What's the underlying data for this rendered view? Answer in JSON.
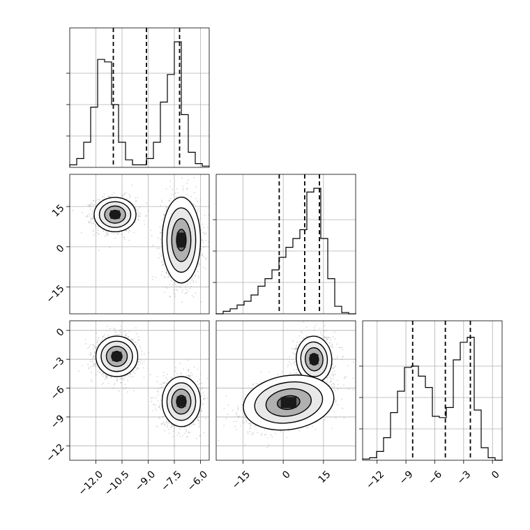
{
  "chart_data": {
    "type": "corner",
    "parameters": [
      {
        "range": [
          -13.5,
          -5.5
        ],
        "ticks": [
          -12.0,
          -10.5,
          -9.0,
          -7.5,
          -6.0
        ],
        "tick_labels": [
          "−12.0",
          "−10.5",
          "−9.0",
          "−7.5",
          "−6.0"
        ],
        "quantiles": [
          -11.0,
          -9.1,
          -7.2
        ],
        "hist_edges": [
          -13.5,
          -13.1,
          -12.7,
          -12.3,
          -11.9,
          -11.5,
          -11.1,
          -10.7,
          -10.3,
          -9.9,
          -9.5,
          -9.1,
          -8.7,
          -8.3,
          -7.9,
          -7.5,
          -7.1,
          -6.7,
          -6.3,
          -5.9,
          -5.5
        ],
        "hist_counts": [
          0.02,
          0.07,
          0.2,
          0.48,
          0.86,
          0.84,
          0.5,
          0.2,
          0.06,
          0.02,
          0.02,
          0.07,
          0.2,
          0.52,
          0.74,
          1.0,
          0.42,
          0.12,
          0.03,
          0.01
        ]
      },
      {
        "range": [
          -25,
          27
        ],
        "ticks": [
          -15,
          0,
          15
        ],
        "tick_labels": [
          "−15",
          "0",
          "15"
        ],
        "quantiles": [
          -1.5,
          8.0,
          13.5
        ],
        "hist_edges": [
          -25,
          -22.4,
          -19.8,
          -17.2,
          -14.6,
          -12,
          -9.4,
          -6.8,
          -4.2,
          -1.6,
          1,
          3.6,
          6.2,
          8.8,
          11.4,
          14,
          16.6,
          19.2,
          21.8,
          24.4,
          27
        ],
        "hist_counts": [
          0.0,
          0.02,
          0.04,
          0.07,
          0.1,
          0.15,
          0.22,
          0.28,
          0.35,
          0.45,
          0.53,
          0.6,
          0.67,
          0.97,
          1.0,
          0.6,
          0.28,
          0.06,
          0.01,
          0.0
        ]
      },
      {
        "range": [
          -13.5,
          1.0
        ],
        "ticks": [
          -12,
          -9,
          -6,
          -3,
          0
        ],
        "tick_labels": [
          "−12",
          "−9",
          "−6",
          "−3",
          "0"
        ],
        "quantiles": [
          -8.3,
          -4.9,
          -2.3
        ],
        "hist_edges": [
          -13.5,
          -12.775,
          -12.05,
          -11.325,
          -10.6,
          -9.875,
          -9.15,
          -8.425,
          -7.7,
          -6.975,
          -6.25,
          -5.525,
          -4.8,
          -4.075,
          -3.35,
          -2.625,
          -1.9,
          -1.175,
          -0.45,
          0.275,
          1.0
        ],
        "hist_counts": [
          0.01,
          0.02,
          0.07,
          0.18,
          0.38,
          0.55,
          0.74,
          0.75,
          0.67,
          0.58,
          0.35,
          0.34,
          0.42,
          0.8,
          0.94,
          0.98,
          0.4,
          0.1,
          0.02,
          0.0
        ]
      }
    ],
    "scatter_pairs": [
      {
        "row": 1,
        "col": 0,
        "modes": [
          {
            "mean": [
              -10.9,
              12.0
            ],
            "sd": [
              0.6,
              3.2
            ],
            "corr": 0.0,
            "weight": 0.5
          },
          {
            "mean": [
              -7.1,
              2.5
            ],
            "sd": [
              0.55,
              8.0
            ],
            "corr": 0.0,
            "weight": 0.5
          }
        ]
      },
      {
        "row": 2,
        "col": 0,
        "modes": [
          {
            "mean": [
              -10.8,
              -2.7
            ],
            "sd": [
              0.6,
              1.05
            ],
            "corr": 0.0,
            "weight": 0.5
          },
          {
            "mean": [
              -7.1,
              -7.4
            ],
            "sd": [
              0.55,
              1.3
            ],
            "corr": 0.0,
            "weight": 0.5
          }
        ]
      },
      {
        "row": 2,
        "col": 1,
        "modes": [
          {
            "mean": [
              11.5,
              -3.0
            ],
            "sd": [
              3.3,
              1.2
            ],
            "corr": 0.1,
            "weight": 0.5
          },
          {
            "mean": [
              2.0,
              -7.5
            ],
            "sd": [
              8.5,
              1.4
            ],
            "corr": 0.45,
            "weight": 0.5
          }
        ]
      }
    ],
    "title": "",
    "xlabel": "",
    "ylabel": "",
    "grid": true,
    "quantile_style": "dashed"
  }
}
